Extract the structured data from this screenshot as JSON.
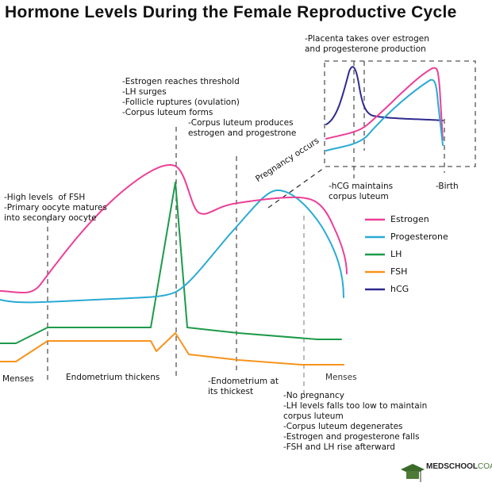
{
  "title": "Hormone Levels During the Female Reproductive Cycle",
  "annotations": {
    "fsh": "-High levels  of FSH\n-Primary oocyte matures\ninto secondary oocyte",
    "ovulation": "-Estrogen reaches threshold\n-LH surges\n-Follicle ruptures (ovulation)\n-Corpus luteum forms",
    "corpus_luteum": "-Corpus luteum produces\nestrogen and progestrone",
    "pregnancy": "Pregnancy occurs",
    "placenta": "-Placenta takes over estrogen\nand progesterone production",
    "hcg": "-hCG maintains\ncorpus luteum",
    "birth": "-Birth",
    "menses_1": "Menses",
    "endometrium_thickens": "Endometrium thickens",
    "endometrium_thickest": "-Endometrium at\nits thickest",
    "menses_2": "Menses",
    "no_pregnancy": "-No pregnancy\n-LH levels falls too low to maintain\ncorpus luteum\n-Corpus luteum degenerates\n-Estrogen and progesterone falls\n-FSH and LH rise afterward"
  },
  "legend": [
    {
      "label": "Estrogen",
      "color": "#ec3f97"
    },
    {
      "label": "Progesterone",
      "color": "#2aaad3"
    },
    {
      "label": "LH",
      "color": "#1d9a4a"
    },
    {
      "label": "FSH",
      "color": "#f7931e"
    },
    {
      "label": "hCG",
      "color": "#2e2a8f"
    }
  ],
  "logo": {
    "bold": "MEDSCHOOL",
    "light": "COACH"
  }
}
